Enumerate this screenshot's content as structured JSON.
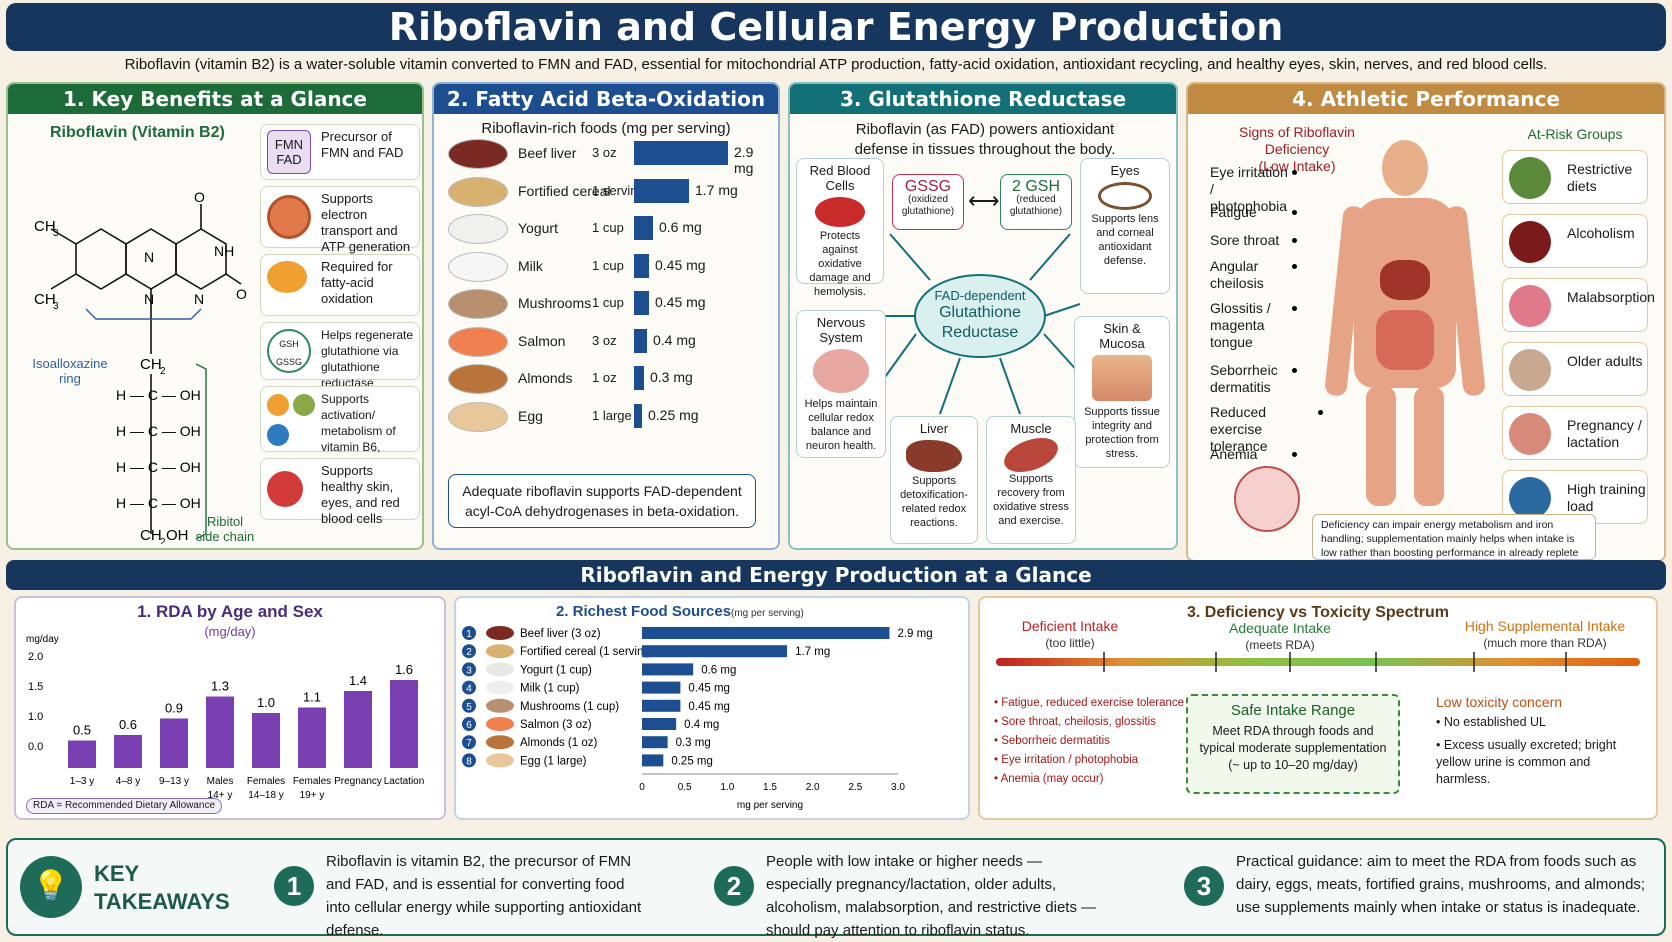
{
  "header": {
    "title": "Riboflavin and Cellular Energy Production",
    "subtitle": "Riboflavin (vitamin B2) is a water-soluble vitamin converted to FMN and FAD, essential for mitochondrial ATP production, fatty-acid oxidation, antioxidant recycling, and healthy eyes, skin, nerves, and red blood cells."
  },
  "sec1": {
    "title": "1. Key Benefits at a Glance",
    "molecule": "Riboflavin (Vitamin B2)",
    "ring": "Isoalloxazine ring",
    "chain": "Ribitol side chain",
    "cards": [
      {
        "icon": "FMN FAD",
        "text": "Precursor of FMN and FAD"
      },
      {
        "text": "Supports electron transport and ATP generation"
      },
      {
        "icon": "Acyl-CoA",
        "text": "Required for fatty-acid oxidation"
      },
      {
        "icon": "GSH GSSG",
        "text": "Helps regenerate glutathione via glutathione reductase"
      },
      {
        "icon": "B6 B9 B3 Folate Niacin",
        "text": "Supports activation/ metabolism of vitamin B6, folate, and niacin"
      },
      {
        "text": "Supports healthy skin, eyes, and red blood cells"
      }
    ]
  },
  "sec2": {
    "title": "2. Fatty Acid Beta-Oxidation",
    "subtitle": "Riboflavin-rich foods (mg per serving)",
    "foods": [
      {
        "name": "Beef liver",
        "qty": "3 oz",
        "value": "2.9 mg",
        "v": 2.9
      },
      {
        "name": "Fortified cereal",
        "qty": "1 serving",
        "value": "1.7 mg",
        "v": 1.7
      },
      {
        "name": "Yogurt",
        "qty": "1 cup",
        "value": "0.6 mg",
        "v": 0.6
      },
      {
        "name": "Milk",
        "qty": "1 cup",
        "value": "0.45 mg",
        "v": 0.45
      },
      {
        "name": "Mushrooms",
        "qty": "1 cup",
        "value": "0.45 mg",
        "v": 0.45
      },
      {
        "name": "Salmon",
        "qty": "3 oz",
        "value": "0.4 mg",
        "v": 0.4
      },
      {
        "name": "Almonds",
        "qty": "1 oz",
        "value": "0.3 mg",
        "v": 0.3
      },
      {
        "name": "Egg",
        "qty": "1 large",
        "value": "0.25 mg",
        "v": 0.25
      }
    ],
    "note": "Adequate riboflavin supports FAD-dependent acyl-CoA dehydrogenases in beta-oxidation."
  },
  "sec3": {
    "title": "3. Glutathione Reductase",
    "intro": "Riboflavin (as FAD) powers antioxidant defense in tissues throughout the body.",
    "gssg": "GSSG",
    "gssg_sub": "(oxidized glutathione)",
    "gsh": "2 GSH",
    "gsh_sub": "(reduced glutathione)",
    "center": "FAD-dependent",
    "center2": "Glutathione Reductase",
    "rbc_h": "Red Blood Cells",
    "rbc": "Protects against oxidative damage and hemolysis.",
    "eyes_h": "Eyes",
    "eyes": "Supports lens and corneal antioxidant defense.",
    "nerv_h": "Nervous System",
    "nerv": "Helps maintain cellular redox balance and neuron health.",
    "skin_h": "Skin & Mucosa",
    "skin": "Supports tissue integrity and protection from stress.",
    "liver_h": "Liver",
    "liver": "Supports detoxification-related redox reactions.",
    "muscle_h": "Muscle",
    "muscle": "Supports recovery from oxidative stress and exercise."
  },
  "sec4": {
    "title": "4. Athletic Performance",
    "signs": "Signs of Riboflavin Deficiency",
    "signs_sub": "(Low Intake)",
    "risk_title": "At-Risk Groups",
    "symptoms": [
      "Eye irritation / photophobia",
      "Fatigue",
      "Sore throat",
      "Angular cheilosis",
      "Glossitis / magenta tongue",
      "Seborrheic dermatitis",
      "Reduced exercise tolerance",
      "Anemia"
    ],
    "risks": [
      "Restrictive diets",
      "Alcoholism",
      "Malabsorption",
      "Older adults",
      "Pregnancy / lactation",
      "High training load"
    ],
    "note": "Deficiency can impair energy metabolism and iron handling; supplementation mainly helps when intake is low rather than boosting performance in already replete athletes."
  },
  "band": "Riboflavin and Energy Production at a Glance",
  "rda": {
    "title": "1. RDA by Age and Sex",
    "unit": "(mg/day)",
    "ylabel": "mg/day",
    "legend": "RDA = Recommended Dietary Allowance"
  },
  "chart_data": [
    {
      "type": "bar",
      "title": "1. RDA by Age and Sex",
      "ylabel": "mg/day",
      "categories": [
        "1–3 y",
        "4–8 y",
        "9–13 y",
        "Males 14+ y",
        "Females 14–18 y",
        "Females 19+ y",
        "Pregnancy",
        "Lactation"
      ],
      "values": [
        0.5,
        0.6,
        0.9,
        1.3,
        1.0,
        1.1,
        1.4,
        1.6
      ],
      "labels": [
        "0.5",
        "0.6",
        "0.9",
        "1.3",
        "1.0",
        "1.1",
        "1.4",
        "1.6"
      ],
      "yticks": [
        "2.0",
        "1.5",
        "1.0",
        "0.0"
      ]
    },
    {
      "type": "bar",
      "orientation": "horizontal",
      "title": "2. Richest Food Sources",
      "subtitle": "(mg per serving)",
      "xlabel": "mg per serving",
      "categories": [
        "Beef liver (3 oz)",
        "Fortified cereal (1 serving)",
        "Yogurt (1 cup)",
        "Milk (1 cup)",
        "Mushrooms (1 cup)",
        "Salmon (3 oz)",
        "Almonds (1 oz)",
        "Egg (1 large)"
      ],
      "values": [
        2.9,
        1.7,
        0.6,
        0.45,
        0.45,
        0.4,
        0.3,
        0.25
      ],
      "labels": [
        "2.9 mg",
        "1.7 mg",
        "0.6 mg",
        "0.45 mg",
        "0.45 mg",
        "0.4 mg",
        "0.3 mg",
        "0.25 mg"
      ],
      "xticks": [
        "0",
        "0.5",
        "1.0",
        "1.5",
        "2.0",
        "2.5",
        "3.0"
      ],
      "xlim": [
        0,
        3.0
      ]
    }
  ],
  "spectrum": {
    "title": "3. Deficiency vs Toxicity Spectrum",
    "def": "Deficient Intake",
    "def_sub": "(too little)",
    "adq": "Adequate Intake",
    "adq_sub": "(meets RDA)",
    "high": "High Supplemental Intake",
    "high_sub": "(much more than RDA)",
    "def_items": [
      "Fatigue, reduced exercise tolerance",
      "Sore throat, cheilosis, glossitis",
      "Seborrheic dermatitis",
      "Eye irritation / photophobia",
      "Anemia (may occur)"
    ],
    "safe_h": "Safe Intake Range",
    "safe": "Meet RDA through foods and typical moderate supplementation (~ up to 10–20 mg/day)",
    "low": "Low toxicity concern",
    "low_items": [
      "No established UL",
      "Excess usually excreted; bright yellow urine is common and harmless."
    ]
  },
  "takeaways": {
    "title1": "KEY",
    "title2": "TAKEAWAYS",
    "items": [
      {
        "n": "1",
        "text": "Riboflavin is vitamin B2, the precursor of FMN and FAD, and is essential for converting food into cellular energy while supporting antioxidant defense."
      },
      {
        "n": "2",
        "text": "People with low intake or higher needs — especially pregnancy/lactation, older adults, alcoholism, malabsorption, and restrictive diets — should pay attention to riboflavin status."
      },
      {
        "n": "3",
        "text": "Practical guidance: aim to meet the RDA from foods such as dairy, eggs, meats, fortified grains, mushrooms, and almonds; use supplements mainly when intake or status is inadequate."
      }
    ]
  }
}
